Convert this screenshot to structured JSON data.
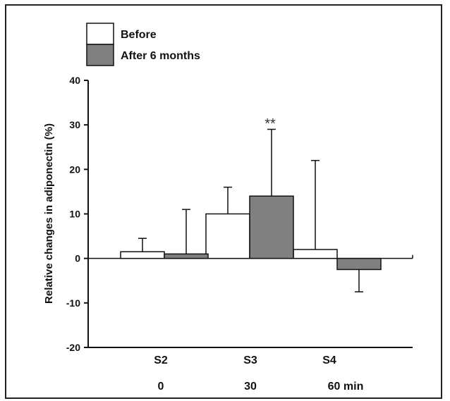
{
  "chart_data": {
    "type": "bar",
    "ylabel": "Relative changes in adiponectin  (%)",
    "ylim": [
      -20,
      40
    ],
    "yticks": [
      "40",
      "30",
      "20",
      "10",
      "0",
      "-10",
      "-20"
    ],
    "categories": [
      "S2",
      "S3",
      "S4"
    ],
    "sublabels": [
      "0",
      "30",
      "60 min"
    ],
    "legend_position": "top-left",
    "series": [
      {
        "name": "Before",
        "color": "#ffffff",
        "values": [
          1.5,
          10,
          2
        ],
        "errors": [
          3,
          6,
          20
        ]
      },
      {
        "name": "After 6 months",
        "color": "#808080",
        "values": [
          1,
          14,
          -2.5
        ],
        "errors": [
          10,
          15,
          5
        ]
      }
    ],
    "annotations": [
      {
        "text": "**",
        "category": "S3",
        "series": "After 6 months"
      }
    ]
  }
}
